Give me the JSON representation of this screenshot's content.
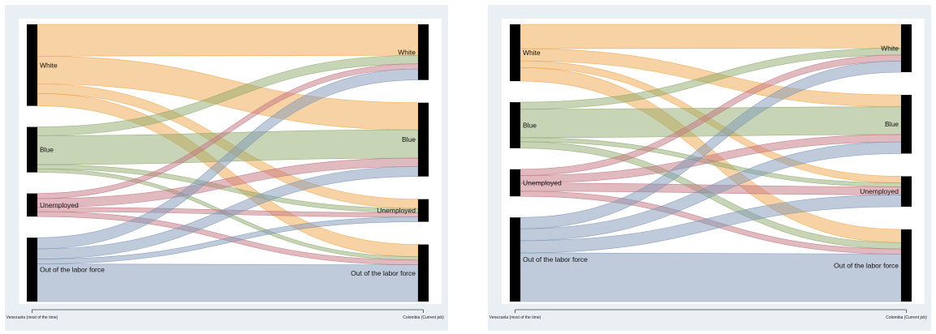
{
  "colors": {
    "White": "#f0a64a",
    "Blue": "#8faa6c",
    "Unemployed": "#c47581",
    "Out of the labor force": "#7f98b8",
    "node": "#000000",
    "plot_background": "#ffffff",
    "panel_background": "#e9eff2"
  },
  "chart_data": [
    {
      "type": "sankey",
      "xlabels": [
        "Venezuela (most of the time)",
        "Colombia (Current job)"
      ],
      "categories": [
        "White",
        "Blue",
        "Unemployed",
        "Out of the labor force"
      ],
      "left_nodes": [
        "White",
        "Blue",
        "Unemployed",
        "Out of the labor force"
      ],
      "right_nodes": [
        "White",
        "Blue",
        "Unemployed",
        "Out of the labor force"
      ],
      "flows": [
        {
          "from": "White",
          "to": "White",
          "value": 11.0
        },
        {
          "from": "White",
          "to": "Blue",
          "value": 9.6
        },
        {
          "from": "White",
          "to": "Unemployed",
          "value": 3.3
        },
        {
          "from": "White",
          "to": "Out of the labor force",
          "value": 4.3
        },
        {
          "from": "Blue",
          "to": "White",
          "value": 3.0
        },
        {
          "from": "Blue",
          "to": "Blue",
          "value": 10.0
        },
        {
          "from": "Blue",
          "to": "Unemployed",
          "value": 1.5
        },
        {
          "from": "Blue",
          "to": "Out of the labor force",
          "value": 1.2
        },
        {
          "from": "Unemployed",
          "to": "White",
          "value": 1.8
        },
        {
          "from": "Unemployed",
          "to": "Blue",
          "value": 3.0
        },
        {
          "from": "Unemployed",
          "to": "Unemployed",
          "value": 1.5
        },
        {
          "from": "Unemployed",
          "to": "Out of the labor force",
          "value": 1.7
        },
        {
          "from": "Out of the labor force",
          "to": "White",
          "value": 3.9
        },
        {
          "from": "Out of the labor force",
          "to": "Blue",
          "value": 3.5
        },
        {
          "from": "Out of the labor force",
          "to": "Unemployed",
          "value": 1.7
        },
        {
          "from": "Out of the labor force",
          "to": "Out of the labor force",
          "value": 13.0
        }
      ]
    },
    {
      "type": "sankey",
      "xlabels": [
        "Venezuela (most of the time)",
        "Colombia (Current job)"
      ],
      "categories": [
        "White",
        "Blue",
        "Unemployed",
        "Out of the labor force"
      ],
      "left_nodes": [
        "White",
        "Blue",
        "Unemployed",
        "Out of the labor force"
      ],
      "right_nodes": [
        "White",
        "Blue",
        "Unemployed",
        "Out of the labor force"
      ],
      "flows": [
        {
          "from": "White",
          "to": "White",
          "value": 9.0
        },
        {
          "from": "White",
          "to": "Blue",
          "value": 4.5
        },
        {
          "from": "White",
          "to": "Unemployed",
          "value": 2.5
        },
        {
          "from": "White",
          "to": "Out of the labor force",
          "value": 5.0
        },
        {
          "from": "Blue",
          "to": "White",
          "value": 2.6
        },
        {
          "from": "Blue",
          "to": "Blue",
          "value": 10.5
        },
        {
          "from": "Blue",
          "to": "Unemployed",
          "value": 1.5
        },
        {
          "from": "Blue",
          "to": "Out of the labor force",
          "value": 2.4
        },
        {
          "from": "Unemployed",
          "to": "White",
          "value": 2.3
        },
        {
          "from": "Unemployed",
          "to": "Blue",
          "value": 2.8
        },
        {
          "from": "Unemployed",
          "to": "Unemployed",
          "value": 3.0
        },
        {
          "from": "Unemployed",
          "to": "Out of the labor force",
          "value": 1.9
        },
        {
          "from": "Out of the labor force",
          "to": "White",
          "value": 4.2
        },
        {
          "from": "Out of the labor force",
          "to": "Blue",
          "value": 4.4
        },
        {
          "from": "Out of the labor force",
          "to": "Unemployed",
          "value": 4.5
        },
        {
          "from": "Out of the labor force",
          "to": "Out of the labor force",
          "value": 18.0
        }
      ]
    }
  ]
}
